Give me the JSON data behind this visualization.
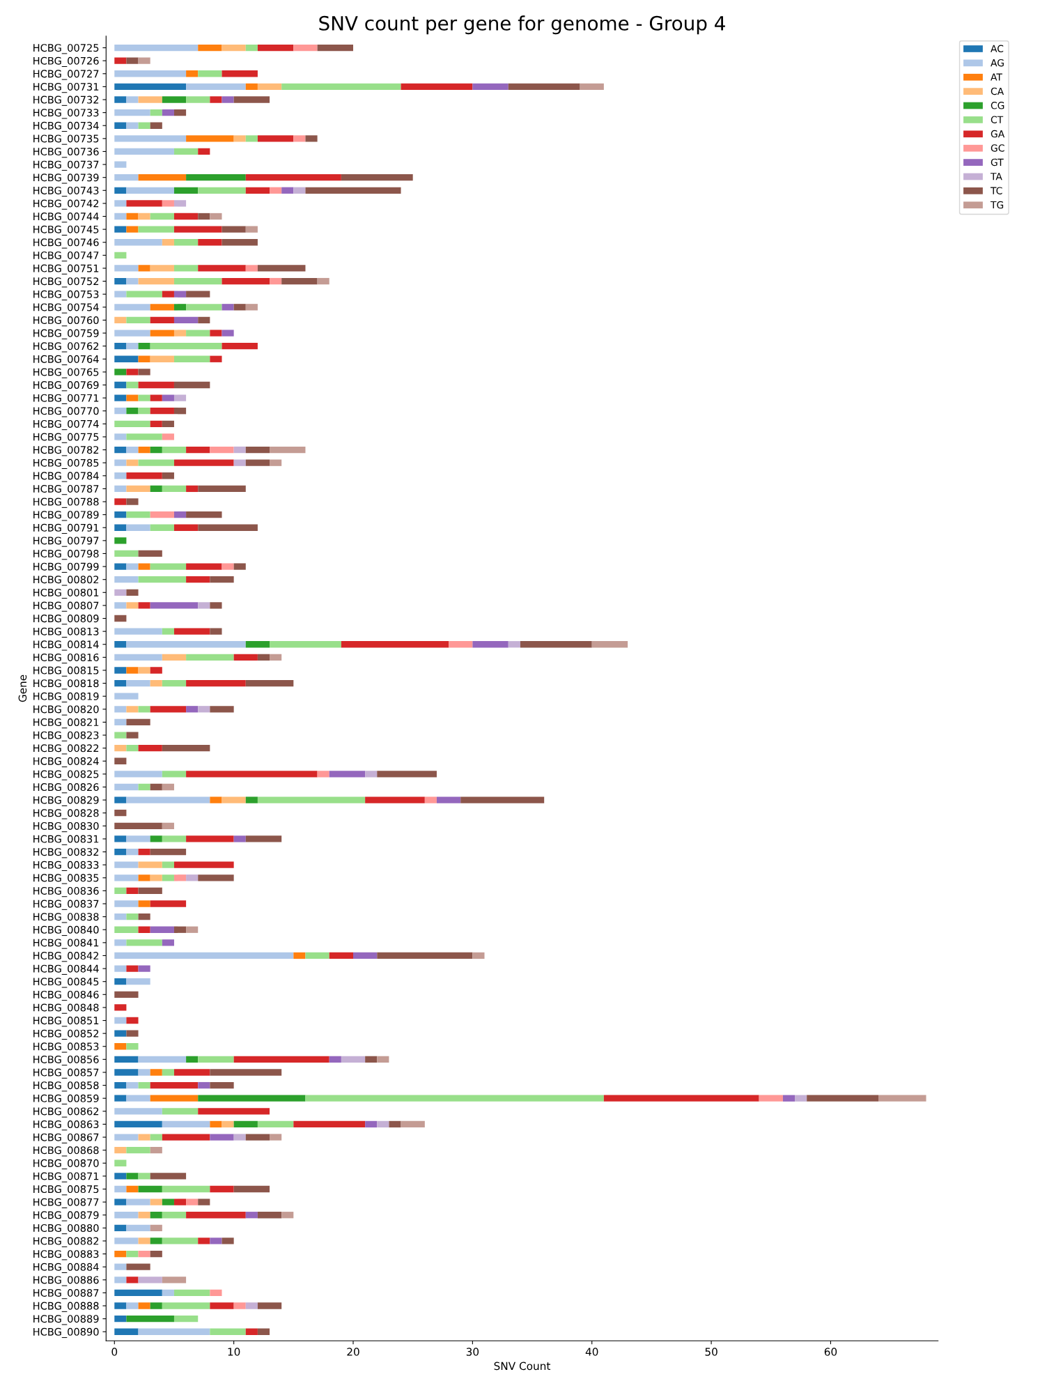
{
  "chart_data": {
    "type": "bar",
    "orientation": "horizontal",
    "stacked": true,
    "title": "SNV count per gene for genome - Group 4",
    "xlabel": "SNV Count",
    "ylabel": "Gene",
    "legend": "top right",
    "grid": false,
    "xlim": [
      -0.7,
      69
    ],
    "xticks": [
      0,
      10,
      20,
      30,
      40,
      50,
      60
    ],
    "categories": [
      "HCBG_00725",
      "HCBG_00726",
      "HCBG_00727",
      "HCBG_00731",
      "HCBG_00732",
      "HCBG_00733",
      "HCBG_00734",
      "HCBG_00735",
      "HCBG_00736",
      "HCBG_00737",
      "HCBG_00739",
      "HCBG_00743",
      "HCBG_00742",
      "HCBG_00744",
      "HCBG_00745",
      "HCBG_00746",
      "HCBG_00747",
      "HCBG_00751",
      "HCBG_00752",
      "HCBG_00753",
      "HCBG_00754",
      "HCBG_00760",
      "HCBG_00759",
      "HCBG_00762",
      "HCBG_00764",
      "HCBG_00765",
      "HCBG_00769",
      "HCBG_00771",
      "HCBG_00770",
      "HCBG_00774",
      "HCBG_00775",
      "HCBG_00782",
      "HCBG_00785",
      "HCBG_00784",
      "HCBG_00787",
      "HCBG_00788",
      "HCBG_00789",
      "HCBG_00791",
      "HCBG_00797",
      "HCBG_00798",
      "HCBG_00799",
      "HCBG_00802",
      "HCBG_00801",
      "HCBG_00807",
      "HCBG_00809",
      "HCBG_00813",
      "HCBG_00814",
      "HCBG_00816",
      "HCBG_00815",
      "HCBG_00818",
      "HCBG_00819",
      "HCBG_00820",
      "HCBG_00821",
      "HCBG_00823",
      "HCBG_00822",
      "HCBG_00824",
      "HCBG_00825",
      "HCBG_00826",
      "HCBG_00829",
      "HCBG_00828",
      "HCBG_00830",
      "HCBG_00831",
      "HCBG_00832",
      "HCBG_00833",
      "HCBG_00835",
      "HCBG_00836",
      "HCBG_00837",
      "HCBG_00838",
      "HCBG_00840",
      "HCBG_00841",
      "HCBG_00842",
      "HCBG_00844",
      "HCBG_00845",
      "HCBG_00846",
      "HCBG_00848",
      "HCBG_00851",
      "HCBG_00852",
      "HCBG_00853",
      "HCBG_00856",
      "HCBG_00857",
      "HCBG_00858",
      "HCBG_00859",
      "HCBG_00862",
      "HCBG_00863",
      "HCBG_00867",
      "HCBG_00868",
      "HCBG_00870",
      "HCBG_00871",
      "HCBG_00875",
      "HCBG_00877",
      "HCBG_00879",
      "HCBG_00880",
      "HCBG_00882",
      "HCBG_00883",
      "HCBG_00884",
      "HCBG_00886",
      "HCBG_00887",
      "HCBG_00888",
      "HCBG_00889",
      "HCBG_00890"
    ],
    "series": [
      {
        "name": "AC",
        "color": "#1f77b4",
        "values": [
          null,
          null,
          null,
          6,
          1,
          null,
          1,
          null,
          null,
          null,
          null,
          1,
          null,
          null,
          1,
          null,
          null,
          null,
          1,
          null,
          null,
          null,
          null,
          1,
          2,
          null,
          1,
          1,
          null,
          null,
          null,
          1,
          null,
          null,
          null,
          null,
          1,
          1,
          null,
          null,
          1,
          null,
          null,
          null,
          null,
          null,
          1,
          null,
          1,
          1,
          null,
          null,
          null,
          null,
          null,
          null,
          null,
          null,
          1,
          null,
          null,
          1,
          1,
          null,
          null,
          null,
          null,
          null,
          null,
          null,
          null,
          null,
          1,
          null,
          null,
          null,
          1,
          null,
          2,
          2,
          1,
          1,
          null,
          4,
          null,
          null,
          null,
          1,
          null,
          1,
          null,
          1,
          null,
          null,
          null,
          null,
          4,
          1,
          1,
          2
        ]
      },
      {
        "name": "AG",
        "color": "#aec7e8",
        "values": [
          7,
          null,
          6,
          5,
          1,
          3,
          1,
          6,
          5,
          1,
          2,
          4,
          1,
          1,
          null,
          4,
          null,
          2,
          1,
          1,
          3,
          null,
          3,
          1,
          null,
          null,
          null,
          null,
          1,
          null,
          1,
          1,
          1,
          1,
          1,
          null,
          null,
          2,
          null,
          null,
          1,
          2,
          null,
          1,
          null,
          4,
          10,
          4,
          null,
          2,
          2,
          1,
          1,
          null,
          null,
          null,
          4,
          2,
          7,
          null,
          null,
          2,
          1,
          2,
          2,
          null,
          2,
          1,
          null,
          1,
          15,
          1,
          2,
          null,
          null,
          1,
          null,
          null,
          4,
          1,
          1,
          2,
          4,
          4,
          2,
          null,
          null,
          null,
          1,
          2,
          2,
          2,
          2,
          null,
          1,
          1,
          1,
          1,
          null,
          6
        ]
      },
      {
        "name": "AT",
        "color": "#ff7f0e",
        "values": [
          2,
          null,
          1,
          1,
          null,
          null,
          null,
          4,
          null,
          null,
          4,
          null,
          null,
          1,
          1,
          null,
          null,
          1,
          null,
          null,
          2,
          null,
          2,
          null,
          1,
          null,
          null,
          1,
          null,
          null,
          null,
          1,
          null,
          null,
          null,
          null,
          null,
          null,
          null,
          null,
          1,
          null,
          null,
          null,
          null,
          null,
          null,
          null,
          1,
          null,
          null,
          null,
          null,
          null,
          null,
          null,
          null,
          null,
          1,
          null,
          null,
          null,
          null,
          null,
          1,
          null,
          1,
          null,
          null,
          null,
          1,
          null,
          null,
          null,
          null,
          null,
          null,
          1,
          null,
          1,
          null,
          4,
          null,
          1,
          null,
          null,
          null,
          null,
          1,
          null,
          null,
          null,
          null,
          1,
          null,
          null,
          null,
          1,
          null,
          null
        ]
      },
      {
        "name": "CA",
        "color": "#ffbb78",
        "values": [
          2,
          null,
          null,
          2,
          2,
          null,
          null,
          1,
          null,
          null,
          null,
          null,
          null,
          1,
          null,
          1,
          null,
          2,
          3,
          null,
          null,
          1,
          1,
          null,
          2,
          null,
          null,
          null,
          null,
          null,
          null,
          null,
          1,
          null,
          2,
          null,
          null,
          null,
          null,
          null,
          null,
          null,
          null,
          1,
          null,
          null,
          null,
          2,
          1,
          1,
          null,
          1,
          null,
          null,
          1,
          null,
          null,
          null,
          2,
          null,
          null,
          null,
          null,
          2,
          1,
          null,
          null,
          null,
          null,
          null,
          null,
          null,
          null,
          null,
          null,
          null,
          null,
          null,
          null,
          null,
          null,
          null,
          null,
          1,
          1,
          1,
          null,
          null,
          null,
          1,
          1,
          null,
          1,
          null,
          null,
          null,
          null,
          null,
          null,
          null
        ]
      },
      {
        "name": "CG",
        "color": "#2ca02c",
        "values": [
          null,
          null,
          null,
          null,
          2,
          null,
          null,
          null,
          null,
          null,
          5,
          2,
          null,
          null,
          null,
          null,
          null,
          null,
          null,
          null,
          1,
          null,
          null,
          1,
          null,
          1,
          null,
          null,
          1,
          null,
          null,
          1,
          null,
          null,
          1,
          null,
          null,
          null,
          1,
          null,
          null,
          null,
          null,
          null,
          null,
          null,
          2,
          null,
          null,
          null,
          null,
          null,
          null,
          null,
          null,
          null,
          null,
          null,
          1,
          null,
          null,
          1,
          null,
          null,
          null,
          null,
          null,
          null,
          null,
          null,
          null,
          null,
          null,
          null,
          null,
          null,
          null,
          null,
          1,
          null,
          null,
          9,
          null,
          2,
          null,
          null,
          null,
          1,
          2,
          1,
          1,
          null,
          1,
          null,
          null,
          null,
          null,
          1,
          4,
          null
        ]
      },
      {
        "name": "CT",
        "color": "#98df8a",
        "values": [
          1,
          null,
          2,
          10,
          2,
          1,
          1,
          1,
          2,
          null,
          null,
          4,
          null,
          2,
          3,
          2,
          1,
          2,
          4,
          3,
          3,
          2,
          2,
          6,
          3,
          null,
          1,
          1,
          1,
          3,
          3,
          2,
          3,
          null,
          2,
          null,
          2,
          2,
          null,
          2,
          3,
          4,
          null,
          null,
          null,
          1,
          6,
          4,
          null,
          2,
          null,
          1,
          null,
          1,
          1,
          null,
          2,
          1,
          9,
          null,
          null,
          2,
          null,
          1,
          1,
          1,
          null,
          1,
          2,
          3,
          2,
          null,
          null,
          null,
          null,
          null,
          null,
          1,
          3,
          1,
          1,
          25,
          3,
          3,
          1,
          2,
          1,
          1,
          4,
          null,
          2,
          null,
          3,
          1,
          null,
          null,
          3,
          4,
          2,
          3
        ]
      },
      {
        "name": "GA",
        "color": "#d62728",
        "values": [
          3,
          1,
          3,
          6,
          1,
          null,
          null,
          3,
          1,
          null,
          8,
          2,
          3,
          2,
          4,
          2,
          null,
          4,
          4,
          1,
          null,
          2,
          1,
          3,
          1,
          1,
          3,
          1,
          2,
          1,
          null,
          2,
          5,
          3,
          1,
          1,
          null,
          2,
          null,
          null,
          3,
          2,
          null,
          1,
          null,
          3,
          9,
          2,
          1,
          5,
          null,
          3,
          null,
          null,
          2,
          null,
          11,
          null,
          5,
          null,
          null,
          4,
          1,
          5,
          null,
          1,
          3,
          null,
          1,
          null,
          2,
          1,
          null,
          null,
          1,
          1,
          null,
          null,
          8,
          3,
          4,
          13,
          6,
          6,
          4,
          null,
          null,
          null,
          2,
          1,
          5,
          null,
          1,
          null,
          null,
          1,
          null,
          2,
          null,
          1
        ]
      },
      {
        "name": "GC",
        "color": "#ff9896",
        "values": [
          2,
          null,
          null,
          null,
          null,
          null,
          null,
          1,
          null,
          null,
          null,
          1,
          1,
          null,
          null,
          null,
          null,
          1,
          1,
          null,
          null,
          null,
          null,
          null,
          null,
          null,
          null,
          null,
          null,
          null,
          1,
          2,
          null,
          null,
          null,
          null,
          2,
          null,
          null,
          null,
          1,
          null,
          null,
          null,
          null,
          null,
          2,
          null,
          null,
          null,
          null,
          null,
          null,
          null,
          null,
          null,
          1,
          null,
          1,
          null,
          null,
          null,
          null,
          null,
          1,
          null,
          null,
          null,
          null,
          null,
          null,
          null,
          null,
          null,
          null,
          null,
          null,
          null,
          null,
          null,
          null,
          2,
          null,
          null,
          null,
          null,
          null,
          null,
          null,
          1,
          null,
          null,
          null,
          1,
          null,
          null,
          1,
          1,
          null,
          null
        ]
      },
      {
        "name": "GT",
        "color": "#9467bd",
        "values": [
          null,
          null,
          null,
          3,
          1,
          1,
          null,
          null,
          null,
          null,
          null,
          1,
          null,
          null,
          null,
          null,
          null,
          null,
          null,
          1,
          1,
          2,
          1,
          null,
          null,
          null,
          null,
          1,
          null,
          null,
          null,
          null,
          null,
          null,
          null,
          null,
          1,
          null,
          null,
          null,
          null,
          null,
          null,
          4,
          null,
          null,
          3,
          null,
          null,
          null,
          null,
          1,
          null,
          null,
          null,
          null,
          3,
          null,
          2,
          null,
          null,
          1,
          null,
          null,
          null,
          null,
          null,
          null,
          2,
          1,
          2,
          1,
          null,
          null,
          null,
          null,
          null,
          null,
          1,
          null,
          1,
          1,
          null,
          1,
          2,
          null,
          null,
          null,
          null,
          null,
          1,
          null,
          1,
          null,
          null,
          null,
          null,
          null,
          null,
          null
        ]
      },
      {
        "name": "TA",
        "color": "#c5b0d5",
        "values": [
          null,
          null,
          null,
          null,
          null,
          null,
          null,
          null,
          null,
          null,
          null,
          1,
          1,
          null,
          null,
          null,
          null,
          null,
          null,
          null,
          null,
          null,
          null,
          null,
          null,
          null,
          null,
          1,
          null,
          null,
          null,
          1,
          1,
          null,
          null,
          null,
          null,
          null,
          null,
          null,
          null,
          null,
          1,
          1,
          null,
          null,
          1,
          null,
          null,
          null,
          null,
          1,
          null,
          null,
          null,
          null,
          1,
          null,
          null,
          null,
          null,
          null,
          null,
          null,
          1,
          null,
          null,
          null,
          null,
          null,
          null,
          null,
          null,
          null,
          null,
          null,
          null,
          null,
          2,
          null,
          null,
          1,
          null,
          1,
          1,
          null,
          null,
          null,
          null,
          null,
          null,
          null,
          null,
          null,
          null,
          2,
          null,
          1,
          null,
          null
        ]
      },
      {
        "name": "TC",
        "color": "#8c564b",
        "values": [
          3,
          1,
          null,
          6,
          3,
          1,
          1,
          1,
          null,
          null,
          6,
          8,
          null,
          1,
          2,
          3,
          null,
          4,
          3,
          2,
          1,
          1,
          null,
          null,
          null,
          1,
          3,
          null,
          1,
          1,
          null,
          2,
          2,
          1,
          4,
          1,
          3,
          5,
          null,
          2,
          1,
          2,
          1,
          1,
          1,
          1,
          6,
          1,
          null,
          4,
          null,
          2,
          2,
          1,
          4,
          1,
          5,
          1,
          7,
          1,
          4,
          3,
          3,
          null,
          3,
          2,
          null,
          1,
          1,
          null,
          8,
          null,
          null,
          2,
          null,
          null,
          1,
          null,
          1,
          6,
          2,
          6,
          null,
          1,
          2,
          null,
          null,
          3,
          3,
          1,
          2,
          null,
          1,
          1,
          2,
          null,
          null,
          2,
          null,
          1
        ]
      },
      {
        "name": "TG",
        "color": "#c49c94",
        "values": [
          null,
          1,
          null,
          2,
          null,
          null,
          null,
          null,
          null,
          null,
          null,
          null,
          null,
          1,
          1,
          null,
          null,
          null,
          1,
          null,
          1,
          null,
          null,
          null,
          null,
          null,
          null,
          null,
          null,
          null,
          null,
          3,
          1,
          null,
          null,
          null,
          null,
          null,
          null,
          null,
          null,
          null,
          null,
          null,
          null,
          null,
          3,
          1,
          null,
          null,
          null,
          null,
          null,
          null,
          null,
          null,
          null,
          1,
          null,
          null,
          1,
          null,
          null,
          null,
          null,
          null,
          null,
          null,
          1,
          null,
          1,
          null,
          null,
          null,
          null,
          null,
          null,
          null,
          1,
          null,
          null,
          4,
          null,
          2,
          1,
          1,
          null,
          null,
          null,
          null,
          1,
          1,
          null,
          null,
          null,
          2,
          null,
          null,
          null,
          null
        ]
      }
    ]
  }
}
